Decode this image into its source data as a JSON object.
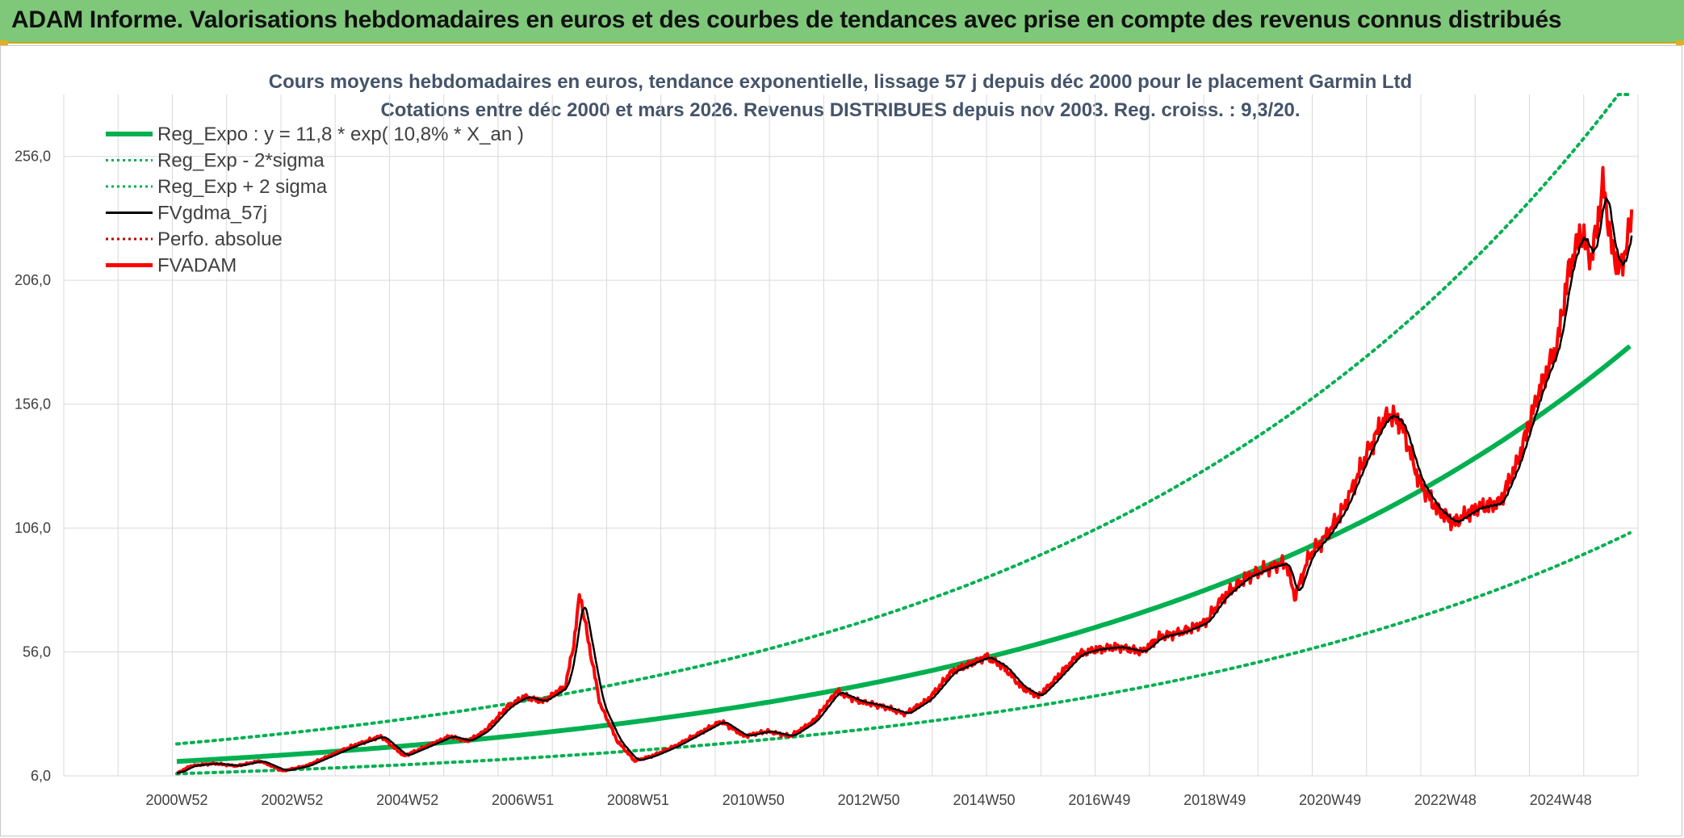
{
  "header": {
    "title": "ADAM Informe. Valorisations hebdomadaires en euros et des courbes de tendances avec prise en compte des revenus connus distribués"
  },
  "colors": {
    "banner": "#7fc87a",
    "reg_expo": "#00b050",
    "fvgdma": "#000000",
    "fvadam": "#ff0000",
    "grid": "#d9d9d9"
  },
  "chart_data": {
    "type": "line",
    "title": "Cours moyens hebdomadaires en euros, tendance exponentielle, lissage 57 j depuis déc 2000 pour le placement Garmin Ltd",
    "subtitle": "Cotations entre déc 2000 et mars 2026. Revenus DISTRIBUES depuis nov 2003. Reg. croiss. : 9,3/20.",
    "xlabel": "",
    "ylabel": "",
    "ylim": [
      6,
      281
    ],
    "y_ticks": [
      "6,0",
      "56,0",
      "106,0",
      "156,0",
      "206,0",
      "256,0"
    ],
    "x_ticks": [
      "2000W52",
      "2002W52",
      "2004W52",
      "2006W51",
      "2008W51",
      "2010W50",
      "2012W50",
      "2014W50",
      "2016W49",
      "2018W49",
      "2020W49",
      "2022W48",
      "2024W48"
    ],
    "legend": [
      {
        "name": "Reg_Expo : y = 11,8 * exp( 10,8% *  X_an )",
        "style": "solid-thick",
        "color": "#00b050"
      },
      {
        "name": "Reg_Exp - 2*sigma",
        "style": "dotted",
        "color": "#00b050"
      },
      {
        "name": "Reg_Exp + 2 sigma",
        "style": "dotted",
        "color": "#00b050"
      },
      {
        "name": "FVgdma_57j",
        "style": "solid",
        "color": "#000000"
      },
      {
        "name": "Perfo. absolue",
        "style": "dotted",
        "color": "#c00000"
      },
      {
        "name": "FVADAM",
        "style": "solid-thick",
        "color": "#ff0000"
      }
    ],
    "x_start": 2000.96,
    "x_end": 2026.2,
    "series": [
      {
        "name": "Reg_Expo",
        "formula": "11.8*exp(0.108*t)",
        "color": "#00b050"
      },
      {
        "name": "Reg_Exp - 2*sigma",
        "formula": "0.58*Reg_Expo",
        "color": "#00b050"
      },
      {
        "name": "Reg_Exp + 2 sigma",
        "formula": "1.6*Reg_Expo",
        "color": "#00b050"
      },
      {
        "name": "FVgdma_57j",
        "color": "#000000"
      },
      {
        "name": "FVADAM",
        "color": "#ff0000",
        "points": [
          [
            2000.96,
            7
          ],
          [
            2001.2,
            10
          ],
          [
            2001.6,
            11
          ],
          [
            2002.0,
            10
          ],
          [
            2002.4,
            12
          ],
          [
            2002.8,
            8
          ],
          [
            2003.2,
            10
          ],
          [
            2003.6,
            14
          ],
          [
            2004.0,
            18
          ],
          [
            2004.5,
            22
          ],
          [
            2004.9,
            14
          ],
          [
            2005.3,
            18
          ],
          [
            2005.7,
            22
          ],
          [
            2006.0,
            20
          ],
          [
            2006.3,
            24
          ],
          [
            2006.7,
            34
          ],
          [
            2007.0,
            38
          ],
          [
            2007.3,
            36
          ],
          [
            2007.7,
            42
          ],
          [
            2007.85,
            60
          ],
          [
            2007.95,
            80
          ],
          [
            2008.1,
            60
          ],
          [
            2008.3,
            35
          ],
          [
            2008.6,
            20
          ],
          [
            2008.9,
            12
          ],
          [
            2009.2,
            14
          ],
          [
            2009.6,
            18
          ],
          [
            2010.0,
            23
          ],
          [
            2010.4,
            28
          ],
          [
            2010.8,
            22
          ],
          [
            2011.2,
            24
          ],
          [
            2011.6,
            22
          ],
          [
            2012.0,
            28
          ],
          [
            2012.4,
            40
          ],
          [
            2012.8,
            36
          ],
          [
            2013.2,
            34
          ],
          [
            2013.6,
            31
          ],
          [
            2014.0,
            37
          ],
          [
            2014.4,
            48
          ],
          [
            2014.8,
            52
          ],
          [
            2015.0,
            54
          ],
          [
            2015.3,
            50
          ],
          [
            2015.6,
            42
          ],
          [
            2015.9,
            38
          ],
          [
            2016.2,
            45
          ],
          [
            2016.6,
            55
          ],
          [
            2016.9,
            57
          ],
          [
            2017.3,
            58
          ],
          [
            2017.7,
            56
          ],
          [
            2018.0,
            62
          ],
          [
            2018.4,
            64
          ],
          [
            2018.8,
            68
          ],
          [
            2019.1,
            78
          ],
          [
            2019.5,
            86
          ],
          [
            2019.9,
            90
          ],
          [
            2020.2,
            92
          ],
          [
            2020.35,
            78
          ],
          [
            2020.6,
            95
          ],
          [
            2020.9,
            103
          ],
          [
            2021.2,
            114
          ],
          [
            2021.6,
            136
          ],
          [
            2021.85,
            148
          ],
          [
            2022.0,
            152
          ],
          [
            2022.2,
            148
          ],
          [
            2022.5,
            125
          ],
          [
            2022.8,
            114
          ],
          [
            2023.1,
            108
          ],
          [
            2023.5,
            114
          ],
          [
            2023.9,
            116
          ],
          [
            2024.2,
            132
          ],
          [
            2024.6,
            162
          ],
          [
            2024.9,
            180
          ],
          [
            2025.1,
            210
          ],
          [
            2025.3,
            225
          ],
          [
            2025.5,
            215
          ],
          [
            2025.7,
            245
          ],
          [
            2025.85,
            218
          ],
          [
            2026.0,
            210
          ],
          [
            2026.2,
            232
          ]
        ]
      }
    ]
  }
}
